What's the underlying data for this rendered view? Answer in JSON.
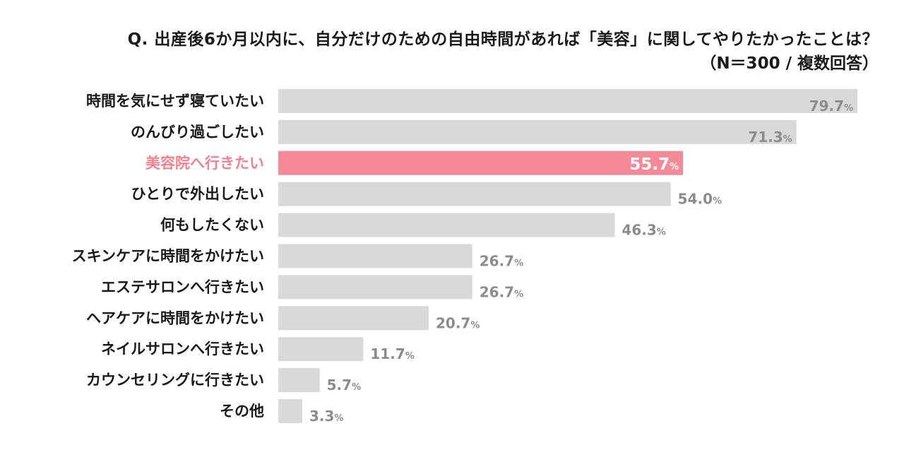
{
  "chart_data": {
    "type": "bar",
    "orientation": "horizontal",
    "title": "Q. 出産後6か月以内に、自分だけのための自由時間があれば「美容」に関してやりたかったことは？",
    "subtitle": "（N＝300 / 複数回答）",
    "unit": "%",
    "categories": [
      "時間を気にせず寝ていたい",
      "のんびり過ごしたい",
      "美容院へ行きたい",
      "ひとりで外出したい",
      "何もしたくない",
      "スキンケアに時間をかけたい",
      "エステサロンへ行きたい",
      "ヘアケアに時間をかけたい",
      "ネイルサロンへ行きたい",
      "カウンセリングに行きたい",
      "その他"
    ],
    "values": [
      79.7,
      71.3,
      55.7,
      54.0,
      46.3,
      26.7,
      26.7,
      20.7,
      11.7,
      5.7,
      3.3
    ],
    "value_labels": [
      "79.7",
      "71.3",
      "55.7",
      "54.0",
      "46.3",
      "26.7",
      "26.7",
      "20.7",
      "11.7",
      "5.7",
      "3.3"
    ],
    "highlight_index": 2,
    "xlim": [
      0,
      100
    ],
    "grid": false,
    "legend": "none",
    "colors": {
      "bar": "#d9d9d9",
      "highlight_bar": "#f48a98",
      "highlight_text": "#f0818f",
      "value_text": "#8c8c8c"
    }
  }
}
